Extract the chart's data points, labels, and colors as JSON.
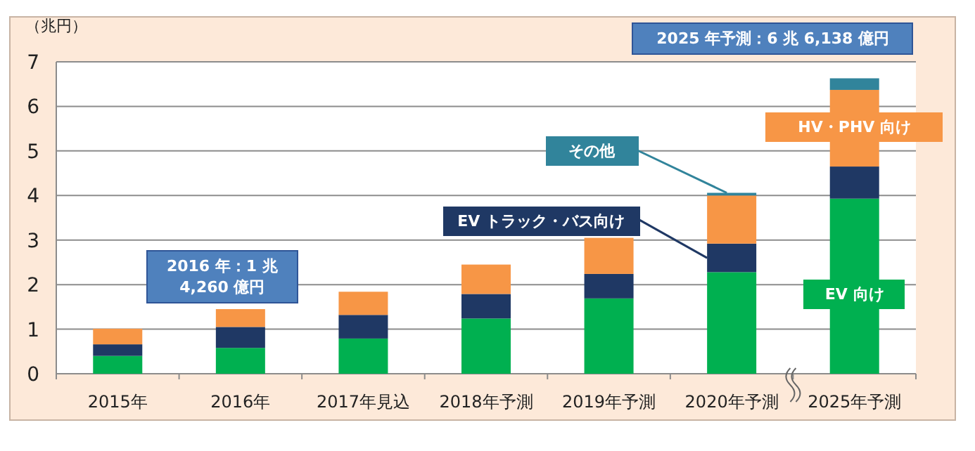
{
  "chart_data": {
    "type": "bar",
    "stacked": true,
    "ylabel": "（兆円）",
    "categories": [
      "2015年",
      "2016年",
      "2017年見込",
      "2018年予測",
      "2019年予測",
      "2020年予測",
      "2025年予測"
    ],
    "series": [
      {
        "name": "EV 向け",
        "color": "#00b050",
        "values": [
          0.4,
          0.58,
          0.79,
          1.24,
          1.69,
          2.28,
          3.93
        ]
      },
      {
        "name": "EV トラック・バス向け",
        "color": "#1f3864",
        "values": [
          0.26,
          0.47,
          0.53,
          0.55,
          0.55,
          0.64,
          0.72
        ]
      },
      {
        "name": "HV・PHV 向け",
        "color": "#f79646",
        "values": [
          0.35,
          0.4,
          0.52,
          0.66,
          0.81,
          1.08,
          1.72
        ]
      },
      {
        "name": "その他",
        "color": "#31849b",
        "values": [
          0,
          0,
          0,
          0,
          0,
          0.06,
          0.26
        ]
      }
    ],
    "ylim": [
      0,
      7
    ],
    "yticks": [
      0,
      1,
      2,
      3,
      4,
      5,
      6,
      7
    ],
    "grid": "y",
    "legend": false,
    "annotations": [
      {
        "text": "2016 年：1 兆 4,260 億円",
        "x": "2016年",
        "y": 1.426
      },
      {
        "text": "2025 年予測：6 兆 6,138 億円",
        "x": "2025年予測",
        "y": 6.61
      }
    ]
  }
}
